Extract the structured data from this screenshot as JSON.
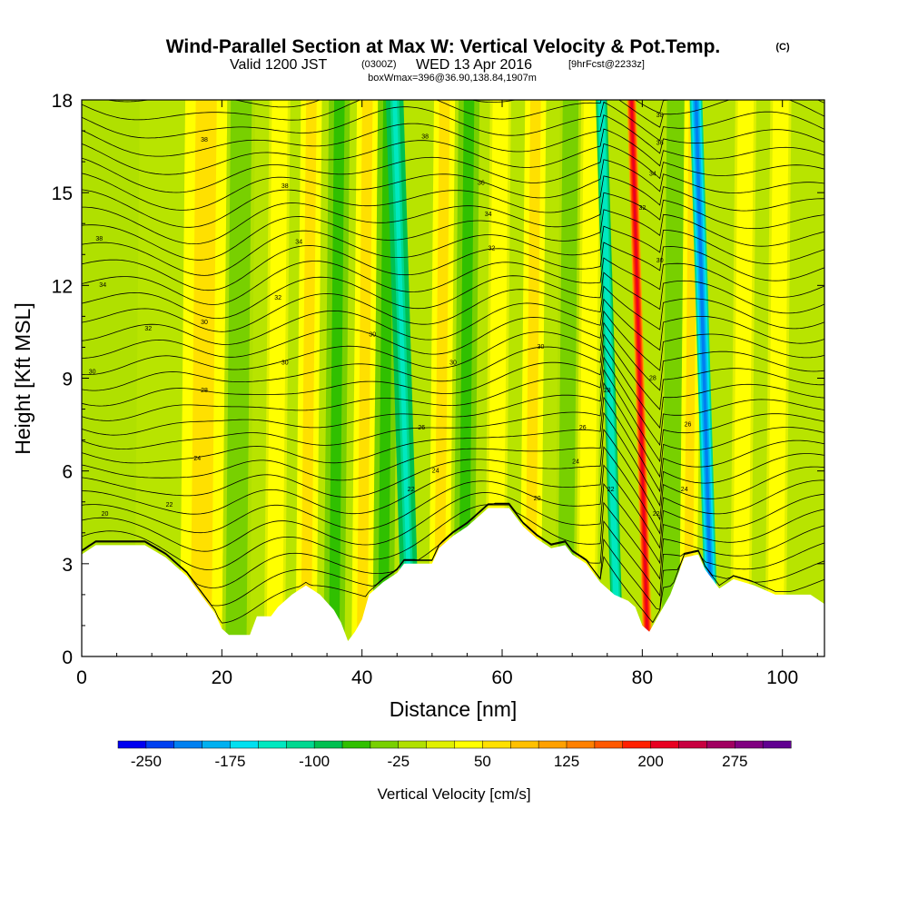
{
  "title": {
    "main": "Wind-Parallel Section at Max W: Vertical Velocity & Pot.Temp.",
    "copyright": "(C)",
    "valid_prefix": "Valid 1200 JST",
    "valid_utc": "(0300Z)",
    "valid_date": "WED 13 Apr 2016",
    "forecast_info": "[9hrFcst@2233z]",
    "box_info": "boxWmax=396@36.90,138.84,1907m"
  },
  "chart_data": {
    "type": "heatmap",
    "xlabel": "Distance [nm]",
    "ylabel": "Height [Kft MSL]",
    "xlim": [
      0,
      106
    ],
    "ylim": [
      0,
      18
    ],
    "x_ticks": [
      0,
      20,
      40,
      60,
      80,
      100
    ],
    "y_ticks": [
      0,
      3,
      6,
      9,
      12,
      15,
      18
    ],
    "colorbar": {
      "title": "Vertical Velocity [cm/s]",
      "min": -275,
      "max": 300,
      "step": 25,
      "labels": [
        -250,
        -175,
        -100,
        -25,
        50,
        125,
        200,
        275
      ],
      "colors": [
        "#0000f0",
        "#0040f0",
        "#0080f0",
        "#00b0f0",
        "#00e0f0",
        "#00e8c0",
        "#00d890",
        "#00c050",
        "#30c000",
        "#78d000",
        "#b0e000",
        "#e0f000",
        "#ffff00",
        "#ffe000",
        "#ffc000",
        "#ffa000",
        "#ff8000",
        "#ff5800",
        "#ff2000",
        "#e80020",
        "#c80040",
        "#a00060",
        "#800080",
        "#600090"
      ]
    },
    "velocity_features": [
      {
        "x": 3,
        "w": 9,
        "value": -20
      },
      {
        "x": 17,
        "w": 6,
        "value": 70
      },
      {
        "x": 22,
        "w": 4,
        "value": -40
      },
      {
        "x": 27.5,
        "w": 3,
        "value": 45
      },
      {
        "x": 32,
        "w": 3,
        "value": 60
      },
      {
        "x": 36,
        "w": 3,
        "value": -70
      },
      {
        "x": 40,
        "w": 3,
        "value": 70
      },
      {
        "x": 43,
        "w": 3,
        "value": -60
      },
      {
        "x": 47,
        "w": 2.5,
        "value": -140
      },
      {
        "x": 51,
        "w": 3,
        "value": 60
      },
      {
        "x": 54.5,
        "w": 3,
        "value": -60
      },
      {
        "x": 59,
        "w": 3,
        "value": 45
      },
      {
        "x": 64,
        "w": 3,
        "value": 60
      },
      {
        "x": 69,
        "w": 3,
        "value": -40
      },
      {
        "x": 72,
        "w": 3,
        "value": 40
      },
      {
        "x": 76.5,
        "w": 1.6,
        "value": -150
      },
      {
        "x": 80.8,
        "w": 1.3,
        "value": 220
      },
      {
        "x": 84,
        "w": 2.5,
        "value": -50
      },
      {
        "x": 86.5,
        "w": 2.5,
        "value": 60
      },
      {
        "x": 90,
        "w": 1.8,
        "value": -220
      },
      {
        "x": 94,
        "w": 3,
        "value": 45
      },
      {
        "x": 99,
        "w": 3,
        "value": 45
      }
    ],
    "terrain": [
      [
        0,
        3.3
      ],
      [
        2,
        3.6
      ],
      [
        9,
        3.6
      ],
      [
        12,
        3.2
      ],
      [
        15,
        2.6
      ],
      [
        17,
        2.0
      ],
      [
        19,
        1.4
      ],
      [
        20,
        0.9
      ],
      [
        21,
        0.7
      ],
      [
        24,
        0.7
      ],
      [
        25,
        1.3
      ],
      [
        27,
        1.3
      ],
      [
        28,
        1.6
      ],
      [
        30,
        2.0
      ],
      [
        32,
        2.3
      ],
      [
        34,
        2.0
      ],
      [
        36,
        1.5
      ],
      [
        37,
        1.1
      ],
      [
        38,
        0.5
      ],
      [
        39,
        0.8
      ],
      [
        40,
        1.2
      ],
      [
        41,
        2.0
      ],
      [
        43,
        2.4
      ],
      [
        45,
        2.7
      ],
      [
        46,
        3.0
      ],
      [
        50,
        3.0
      ],
      [
        51,
        3.5
      ],
      [
        53,
        3.9
      ],
      [
        55,
        4.2
      ],
      [
        58,
        4.8
      ],
      [
        61,
        4.8
      ],
      [
        63,
        4.2
      ],
      [
        65,
        3.8
      ],
      [
        67,
        3.5
      ],
      [
        69,
        3.6
      ],
      [
        70,
        3.3
      ],
      [
        72,
        3.0
      ],
      [
        74,
        2.4
      ],
      [
        76,
        2.0
      ],
      [
        78,
        1.8
      ],
      [
        79,
        1.6
      ],
      [
        80,
        1.0
      ],
      [
        81,
        0.8
      ],
      [
        82,
        1.2
      ],
      [
        84,
        2.0
      ],
      [
        86,
        3.2
      ],
      [
        88,
        3.3
      ],
      [
        89,
        2.8
      ],
      [
        90,
        2.5
      ],
      [
        91,
        2.2
      ],
      [
        93,
        2.5
      ],
      [
        96,
        2.3
      ],
      [
        99,
        2.0
      ],
      [
        104,
        2.0
      ],
      [
        106,
        1.7
      ]
    ],
    "contour_labels": [
      {
        "x": 17.5,
        "y": 16.7,
        "text": "38"
      },
      {
        "x": 29,
        "y": 15.2,
        "text": "38"
      },
      {
        "x": 31,
        "y": 13.4,
        "text": "34"
      },
      {
        "x": 2.5,
        "y": 13.5,
        "text": "38"
      },
      {
        "x": 3,
        "y": 12.0,
        "text": "34"
      },
      {
        "x": 9.5,
        "y": 10.6,
        "text": "32"
      },
      {
        "x": 17.5,
        "y": 10.8,
        "text": "30"
      },
      {
        "x": 28,
        "y": 11.6,
        "text": "32"
      },
      {
        "x": 29,
        "y": 9.5,
        "text": "30"
      },
      {
        "x": 1.5,
        "y": 9.2,
        "text": "30"
      },
      {
        "x": 17.5,
        "y": 8.6,
        "text": "28"
      },
      {
        "x": 16.5,
        "y": 6.4,
        "text": "24"
      },
      {
        "x": 12.5,
        "y": 4.9,
        "text": "22"
      },
      {
        "x": 3.3,
        "y": 4.6,
        "text": "20"
      },
      {
        "x": 41.5,
        "y": 10.4,
        "text": "30"
      },
      {
        "x": 49,
        "y": 16.8,
        "text": "38"
      },
      {
        "x": 57,
        "y": 15.3,
        "text": "36"
      },
      {
        "x": 58,
        "y": 14.3,
        "text": "34"
      },
      {
        "x": 58.5,
        "y": 13.2,
        "text": "32"
      },
      {
        "x": 53,
        "y": 9.5,
        "text": "30"
      },
      {
        "x": 48.5,
        "y": 7.4,
        "text": "26"
      },
      {
        "x": 50.5,
        "y": 6.0,
        "text": "24"
      },
      {
        "x": 47,
        "y": 5.4,
        "text": "22"
      },
      {
        "x": 65.5,
        "y": 10.0,
        "text": "30"
      },
      {
        "x": 71.5,
        "y": 7.4,
        "text": "26"
      },
      {
        "x": 70.5,
        "y": 6.3,
        "text": "24"
      },
      {
        "x": 65,
        "y": 5.1,
        "text": "20"
      },
      {
        "x": 75,
        "y": 8.6,
        "text": "28"
      },
      {
        "x": 75.5,
        "y": 5.4,
        "text": "22"
      },
      {
        "x": 82.5,
        "y": 17.5,
        "text": "38"
      },
      {
        "x": 82.5,
        "y": 16.6,
        "text": "36"
      },
      {
        "x": 81.5,
        "y": 15.6,
        "text": "34"
      },
      {
        "x": 80,
        "y": 14.5,
        "text": "32"
      },
      {
        "x": 82.5,
        "y": 12.8,
        "text": "30"
      },
      {
        "x": 81.5,
        "y": 9.0,
        "text": "28"
      },
      {
        "x": 86.5,
        "y": 7.5,
        "text": "26"
      },
      {
        "x": 86,
        "y": 5.4,
        "text": "24"
      },
      {
        "x": 82,
        "y": 4.6,
        "text": "22"
      }
    ]
  }
}
